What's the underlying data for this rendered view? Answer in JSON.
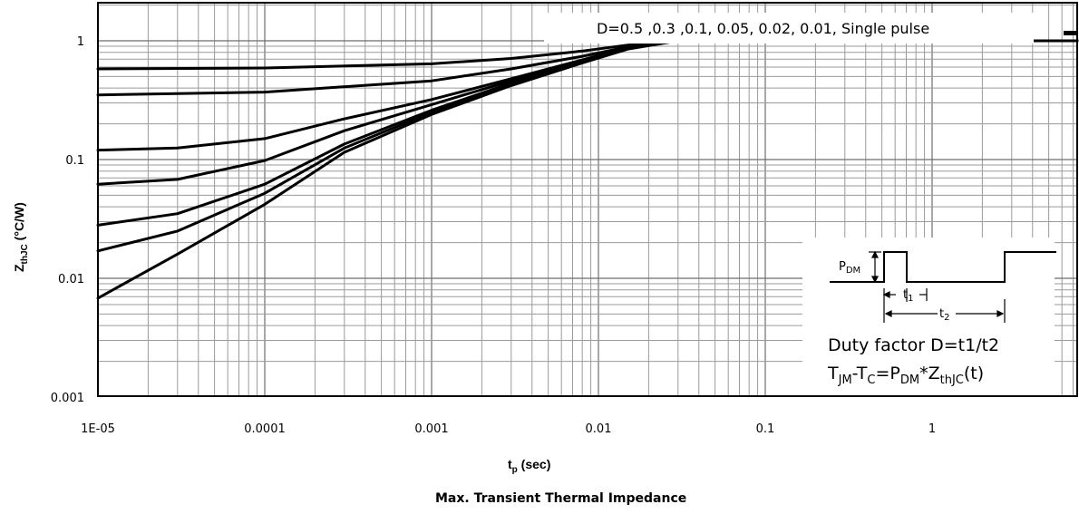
{
  "chart_data": {
    "type": "line",
    "title": "Max. Transient Thermal Impedance",
    "xlabel": "t",
    "xlabel_sub": "p",
    "xlabel_unit": " (sec)",
    "ylabel": "Z",
    "ylabel_sub": "thJC",
    "ylabel_unit": " (°C/W)",
    "x_scale": "log",
    "y_scale": "log",
    "xlim": [
      1e-05,
      10
    ],
    "ylim": [
      0.001,
      1.5
    ],
    "grid": true,
    "x_ticks": [
      {
        "value": 1e-05,
        "label": "1E-05"
      },
      {
        "value": 0.0001,
        "label": "0.0001"
      },
      {
        "value": 0.001,
        "label": "0.001"
      },
      {
        "value": 0.01,
        "label": "0.01"
      },
      {
        "value": 0.1,
        "label": "0.1"
      },
      {
        "value": 1,
        "label": "1"
      }
    ],
    "y_ticks": [
      {
        "value": 0.001,
        "label": "0.001"
      },
      {
        "value": 0.01,
        "label": "0.01"
      },
      {
        "value": 0.1,
        "label": "0.1"
      },
      {
        "value": 1,
        "label": "1"
      }
    ],
    "legend_text": "D=0.5 ,0.3 ,0.1, 0.05, 0.02, 0.01,  Single pulse",
    "series": [
      {
        "key": "D=0.5",
        "x": [
          1e-05,
          0.0001,
          0.001,
          0.003,
          0.008,
          0.015,
          0.03,
          10
        ],
        "y": [
          0.58,
          0.59,
          0.64,
          0.71,
          0.82,
          0.92,
          1.0,
          1.0
        ]
      },
      {
        "key": "D=0.3",
        "x": [
          1e-05,
          0.0001,
          0.001,
          0.003,
          0.008,
          0.015,
          0.03,
          10
        ],
        "y": [
          0.35,
          0.37,
          0.46,
          0.58,
          0.74,
          0.89,
          1.0,
          1.0
        ]
      },
      {
        "key": "D=0.1",
        "x": [
          1e-05,
          3e-05,
          0.0001,
          0.0003,
          0.001,
          0.003,
          0.008,
          0.015,
          0.03,
          10
        ],
        "y": [
          0.12,
          0.125,
          0.15,
          0.22,
          0.32,
          0.48,
          0.69,
          0.88,
          1.0,
          1.0
        ]
      },
      {
        "key": "D=0.05",
        "x": [
          1e-05,
          3e-05,
          0.0001,
          0.0003,
          0.001,
          0.003,
          0.008,
          0.015,
          0.03,
          10
        ],
        "y": [
          0.062,
          0.068,
          0.098,
          0.175,
          0.29,
          0.46,
          0.68,
          0.87,
          1.0,
          1.0
        ]
      },
      {
        "key": "D=0.02",
        "x": [
          1e-05,
          3e-05,
          0.0001,
          0.0003,
          0.001,
          0.003,
          0.008,
          0.015,
          0.03,
          10
        ],
        "y": [
          0.028,
          0.035,
          0.062,
          0.135,
          0.26,
          0.44,
          0.67,
          0.87,
          1.0,
          1.0
        ]
      },
      {
        "key": "D=0.01",
        "x": [
          1e-05,
          3e-05,
          0.0001,
          0.0003,
          0.001,
          0.003,
          0.008,
          0.015,
          0.03,
          10
        ],
        "y": [
          0.017,
          0.025,
          0.052,
          0.125,
          0.25,
          0.43,
          0.66,
          0.86,
          1.0,
          1.0
        ]
      },
      {
        "key": "Single pulse",
        "x": [
          1e-05,
          3e-05,
          0.0001,
          0.0003,
          0.001,
          0.003,
          0.008,
          0.015,
          0.03,
          10
        ],
        "y": [
          0.0068,
          0.016,
          0.042,
          0.115,
          0.24,
          0.42,
          0.65,
          0.85,
          1.0,
          1.0
        ]
      }
    ]
  },
  "inset": {
    "pdm_label": "P",
    "pdm_sub": "DM",
    "t1_label": "t",
    "t1_sub": "1",
    "t2_label": "t",
    "t2_sub": "2",
    "duty_text": "Duty factor D=t1/t2",
    "formula": {
      "t": "T",
      "t_jm_sub": "JM",
      "minus": "-T",
      "t_c_sub": "C",
      "eq": "=P",
      "p_dm_sub": "DM",
      "star": "*Z",
      "z_sub": "thJC",
      "tail": "(t)"
    }
  }
}
